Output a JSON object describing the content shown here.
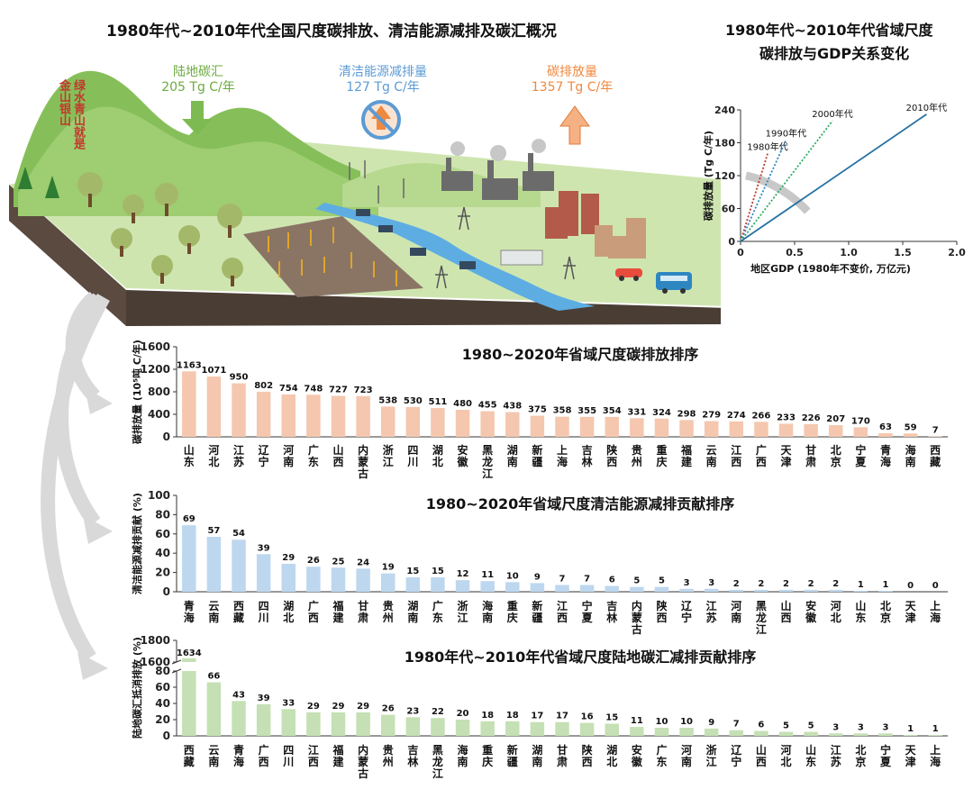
{
  "illustration": {
    "title": "1980年代~2010年代全国尺度碳排放、清洁能源减排及碳汇概况",
    "land_sink": {
      "label": "陆地碳汇",
      "value": "205 Tg C/年",
      "color": "#6cab3f"
    },
    "clean_energy": {
      "label": "清洁能源减排量",
      "value": "127 Tg C/年",
      "color": "#5b9bd5"
    },
    "emission": {
      "label": "碳排放量",
      "value": "1357 Tg C/年",
      "color": "#f0883e"
    },
    "slogan": "绿水青山就是金山银山"
  },
  "top_right": {
    "title_line1": "1980年代~2010年代省域尺度",
    "title_line2": "碳排放与GDP关系变化"
  },
  "chart_data": [
    {
      "type": "line",
      "xlabel": "地区GDP (1980年不变价, 万亿元)",
      "ylabel": "碳排放量 (Tg C/年)",
      "xlim": [
        0,
        2.0
      ],
      "ylim": [
        0,
        240
      ],
      "xticks": [
        "0",
        "0.5",
        "1.0",
        "1.5",
        "2.0"
      ],
      "yticks": [
        "0",
        "60",
        "120",
        "180",
        "240"
      ],
      "series": [
        {
          "name": "1980年代",
          "color": "#c0392b",
          "style": "dotted",
          "x": [
            0,
            0.25
          ],
          "y": [
            0,
            160
          ]
        },
        {
          "name": "1990年代",
          "color": "#2e86c1",
          "style": "dotted",
          "x": [
            0,
            0.42
          ],
          "y": [
            0,
            185
          ]
        },
        {
          "name": "2000年代",
          "color": "#27ae60",
          "style": "dotted",
          "x": [
            0,
            0.85
          ],
          "y": [
            0,
            220
          ]
        },
        {
          "name": "2010年代",
          "color": "#2471a3",
          "style": "solid",
          "x": [
            0,
            1.72
          ],
          "y": [
            0,
            232
          ]
        }
      ]
    },
    {
      "type": "bar",
      "title": "1980~2020年省域尺度碳排放排序",
      "ylabel": "碳排放量 (10⁵吨 C/年)",
      "ylim": [
        0,
        1600
      ],
      "yticks": [
        "0",
        "400",
        "800",
        "1200",
        "1600"
      ],
      "color": "#f4c7ae",
      "categories": [
        "山东",
        "河北",
        "江苏",
        "辽宁",
        "河南",
        "广东",
        "山西",
        "内蒙古",
        "浙江",
        "四川",
        "湖北",
        "安徽",
        "黑龙江",
        "湖南",
        "新疆",
        "上海",
        "吉林",
        "陕西",
        "贵州",
        "重庆",
        "福建",
        "云南",
        "江西",
        "广西",
        "天津",
        "甘肃",
        "北京",
        "宁夏",
        "青海",
        "海南",
        "西藏"
      ],
      "values": [
        1163,
        1071,
        950,
        802,
        754,
        748,
        727,
        723,
        538,
        530,
        511,
        480,
        455,
        438,
        375,
        358,
        355,
        354,
        331,
        324,
        298,
        279,
        274,
        266,
        233,
        226,
        207,
        170,
        63,
        59,
        7
      ]
    },
    {
      "type": "bar",
      "title": "1980~2020年省域尺度清洁能源减排贡献排序",
      "ylabel": "清洁能源减排贡献 (%)",
      "ylim": [
        0,
        100
      ],
      "yticks": [
        "0",
        "20",
        "40",
        "60",
        "80",
        "100"
      ],
      "color": "#bdd7ee",
      "categories": [
        "青海",
        "云南",
        "西藏",
        "四川",
        "湖北",
        "广西",
        "福建",
        "甘肃",
        "贵州",
        "湖南",
        "广东",
        "浙江",
        "海南",
        "重庆",
        "新疆",
        "江西",
        "宁夏",
        "吉林",
        "内蒙古",
        "陕西",
        "辽宁",
        "江苏",
        "河南",
        "黑龙江",
        "山西",
        "安徽",
        "河北",
        "山东",
        "北京",
        "天津",
        "上海"
      ],
      "values": [
        69,
        57,
        54,
        39,
        29,
        26,
        25,
        24,
        19,
        15,
        15,
        12,
        11,
        10,
        9,
        7,
        7,
        6,
        5,
        5,
        3,
        3,
        2,
        2,
        2,
        2,
        2,
        1,
        1,
        0,
        0
      ]
    },
    {
      "type": "bar",
      "title": "1980年代~2010年代省域尺度陆地碳汇减排贡献排序",
      "ylabel": "陆地碳汇抵消排放 (%)",
      "ylim": [
        0,
        1800
      ],
      "yticks": [
        "0",
        "20",
        "40",
        "60",
        "80",
        "1600",
        "1800"
      ],
      "axis_break": [
        80,
        1600
      ],
      "color": "#c5e0b4",
      "categories": [
        "西藏",
        "云南",
        "青海",
        "广西",
        "四川",
        "江西",
        "福建",
        "内蒙古",
        "贵州",
        "吉林",
        "黑龙江",
        "海南",
        "重庆",
        "新疆",
        "湖南",
        "甘肃",
        "陕西",
        "湖北",
        "安徽",
        "广东",
        "河南",
        "浙江",
        "辽宁",
        "山西",
        "河北",
        "山东",
        "江苏",
        "北京",
        "宁夏",
        "天津",
        "上海"
      ],
      "values": [
        1634,
        66,
        43,
        39,
        33,
        29,
        29,
        29,
        26,
        23,
        22,
        20,
        18,
        18,
        17,
        17,
        16,
        15,
        11,
        10,
        10,
        9,
        7,
        6,
        5,
        5,
        3,
        3,
        3,
        1,
        1
      ]
    }
  ]
}
